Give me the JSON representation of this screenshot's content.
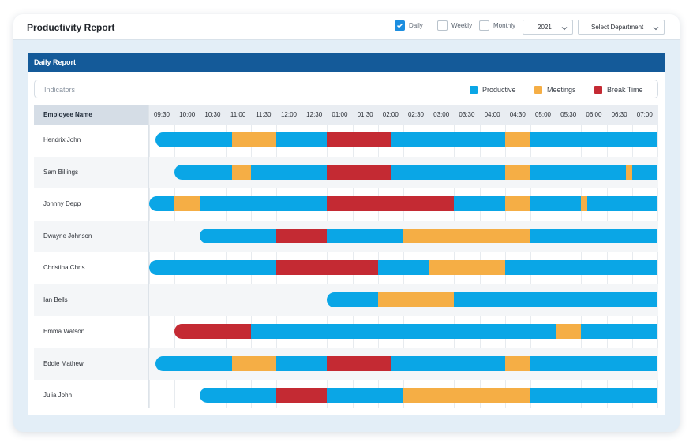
{
  "app": {
    "title": "Productivity Report"
  },
  "filters": {
    "daily_label": "Daily",
    "weekly_label": "Weekly",
    "monthly_label": "Monthly",
    "year_value": "2021",
    "department_value": "Select Department",
    "daily_checked": true,
    "weekly_checked": false,
    "monthly_checked": false
  },
  "panel": {
    "title": "Daily Report",
    "indicators_label": "Indicators"
  },
  "legend": [
    {
      "key": "productive",
      "label": "Productive",
      "color": "#0aa6e6"
    },
    {
      "key": "meetings",
      "label": "Meetings",
      "color": "#f5ae45"
    },
    {
      "key": "break",
      "label": "Break Time",
      "color": "#c42a33"
    }
  ],
  "table": {
    "name_header": "Employee Name",
    "times": [
      "09:30",
      "10:00",
      "10:30",
      "11:00",
      "11:30",
      "12:00",
      "12:30",
      "01:00",
      "01:30",
      "02:00",
      "02:30",
      "03:00",
      "03:30",
      "04:00",
      "04:30",
      "05:00",
      "05:30",
      "06:00",
      "06:30",
      "07:00"
    ],
    "rows": [
      {
        "name": "Hendrix John",
        "segments": [
          [
            "productive",
            0.25,
            3.25
          ],
          [
            "meetings",
            3.25,
            5
          ],
          [
            "productive",
            5,
            7
          ],
          [
            "break",
            7,
            9.5
          ],
          [
            "productive",
            9.5,
            14
          ],
          [
            "meetings",
            14,
            15
          ],
          [
            "productive",
            15,
            20
          ]
        ]
      },
      {
        "name": "Sam Billings",
        "segments": [
          [
            "productive",
            1,
            3.25
          ],
          [
            "meetings",
            3.25,
            4
          ],
          [
            "productive",
            4,
            7
          ],
          [
            "break",
            7,
            9.5
          ],
          [
            "productive",
            9.5,
            14
          ],
          [
            "meetings",
            14,
            15
          ],
          [
            "productive",
            15,
            18.75
          ],
          [
            "meetings",
            18.75,
            19
          ],
          [
            "productive",
            19,
            20
          ]
        ]
      },
      {
        "name": "Johnny Depp",
        "segments": [
          [
            "productive",
            0,
            1
          ],
          [
            "meetings",
            1,
            2
          ],
          [
            "productive",
            2,
            7
          ],
          [
            "break",
            7,
            12
          ],
          [
            "productive",
            12,
            14
          ],
          [
            "meetings",
            14,
            15
          ],
          [
            "productive",
            15,
            17
          ],
          [
            "meetings",
            17,
            17.25
          ],
          [
            "productive",
            17.25,
            20
          ]
        ]
      },
      {
        "name": "Dwayne Johnson",
        "segments": [
          [
            "productive",
            2,
            5
          ],
          [
            "break",
            5,
            7
          ],
          [
            "productive",
            7,
            10
          ],
          [
            "meetings",
            10,
            15
          ],
          [
            "productive",
            15,
            20
          ]
        ]
      },
      {
        "name": "Christina Chris",
        "segments": [
          [
            "productive",
            0,
            5
          ],
          [
            "break",
            5,
            9
          ],
          [
            "productive",
            9,
            11
          ],
          [
            "meetings",
            11,
            14
          ],
          [
            "productive",
            14,
            20
          ]
        ]
      },
      {
        "name": "Ian Bells",
        "segments": [
          [
            "productive",
            7,
            9
          ],
          [
            "meetings",
            9,
            12
          ],
          [
            "productive",
            12,
            20
          ]
        ]
      },
      {
        "name": "Emma Watson",
        "segments": [
          [
            "break",
            1,
            4
          ],
          [
            "productive",
            4,
            16
          ],
          [
            "meetings",
            16,
            17
          ],
          [
            "productive",
            17,
            20
          ]
        ]
      },
      {
        "name": "Eddie Mathew",
        "segments": [
          [
            "productive",
            0.25,
            3.25
          ],
          [
            "meetings",
            3.25,
            5
          ],
          [
            "productive",
            5,
            7
          ],
          [
            "break",
            7,
            9.5
          ],
          [
            "productive",
            9.5,
            14
          ],
          [
            "meetings",
            14,
            15
          ],
          [
            "productive",
            15,
            20
          ]
        ]
      },
      {
        "name": "Julia John",
        "segments": [
          [
            "productive",
            2,
            5
          ],
          [
            "break",
            5,
            7
          ],
          [
            "productive",
            7,
            10
          ],
          [
            "meetings",
            10,
            15
          ],
          [
            "productive",
            15,
            20
          ]
        ]
      }
    ]
  }
}
